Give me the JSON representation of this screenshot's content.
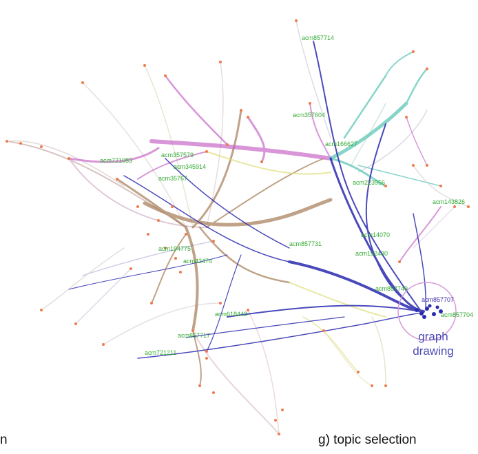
{
  "caption_right": "g) topic selection",
  "caption_left": "n",
  "topic_label": {
    "line1": "graph",
    "line2": "drawing"
  },
  "colors": {
    "highlight": "#2a2ab0",
    "teal": "#5fc6b8",
    "magenta": "#c45fc4",
    "brown": "#a47c55",
    "node": "#f07a4a",
    "label": "#33aa33",
    "topic": "#4a4ab8"
  },
  "labels": [
    "acm857714",
    "acm357604",
    "acm166627",
    "acm721083",
    "acm357579",
    "acm345914",
    "acm35767",
    "acm223956",
    "acm143826",
    "acm14070",
    "acm857731",
    "acm192430",
    "acm857749",
    "acm857707",
    "acm857704",
    "acm618448",
    "acm857717",
    "acm721211",
    "acm194775",
    "acm42474"
  ]
}
